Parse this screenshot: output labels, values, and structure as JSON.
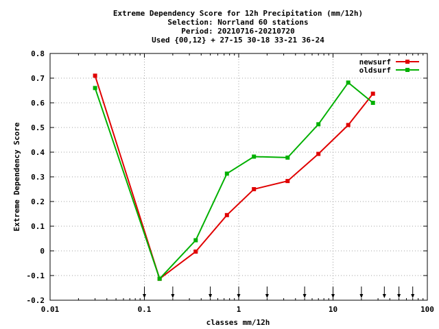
{
  "chart_data": {
    "type": "line",
    "title_lines": [
      "Extreme Dependency Score  for 12h Precipitation (mm/12h)",
      "Selection: Norrland     60 stations",
      "Period: 20210716-20210720",
      "Used {00,12} + 27-15 30-18 33-21 36-24"
    ],
    "xlabel": "classes mm/12h",
    "ylabel": "Extreme Dependency Score",
    "x_scale": "log",
    "xlim": [
      0.01,
      100
    ],
    "ylim": [
      -0.2,
      0.8
    ],
    "grid": true,
    "legend_position": "top-right",
    "x_ticks": [
      {
        "value": 0.01,
        "label": "0.01"
      },
      {
        "value": 0.1,
        "label": "0.1"
      },
      {
        "value": 1,
        "label": "1"
      },
      {
        "value": 10,
        "label": "10"
      },
      {
        "value": 100,
        "label": "100"
      }
    ],
    "y_ticks": [
      {
        "value": -0.2,
        "label": "-0.2"
      },
      {
        "value": -0.1,
        "label": "-0.1"
      },
      {
        "value": 0,
        "label": "0"
      },
      {
        "value": 0.1,
        "label": "0.1"
      },
      {
        "value": 0.2,
        "label": "0.2"
      },
      {
        "value": 0.3,
        "label": "0.3"
      },
      {
        "value": 0.4,
        "label": "0.4"
      },
      {
        "value": 0.5,
        "label": "0.5"
      },
      {
        "value": 0.6,
        "label": "0.6"
      },
      {
        "value": 0.7,
        "label": "0.7"
      },
      {
        "value": 0.8,
        "label": "0.8"
      }
    ],
    "threshold_arrows": [
      0.1,
      0.2,
      0.5,
      1,
      2,
      5,
      10,
      20,
      35,
      50,
      70
    ],
    "series": [
      {
        "name": "newsurf",
        "color": "#e00000",
        "x": [
          0.03,
          0.145,
          0.35,
          0.75,
          1.45,
          3.3,
          7,
          14.5,
          26.5
        ],
        "y": [
          0.71,
          -0.113,
          -0.003,
          0.145,
          0.25,
          0.283,
          0.393,
          0.51,
          0.637
        ]
      },
      {
        "name": "oldsurf",
        "color": "#00b000",
        "x": [
          0.03,
          0.145,
          0.35,
          0.75,
          1.45,
          3.3,
          7,
          14.5,
          26.5
        ],
        "y": [
          0.66,
          -0.113,
          0.043,
          0.313,
          0.382,
          0.378,
          0.513,
          0.682,
          0.6
        ]
      }
    ]
  }
}
